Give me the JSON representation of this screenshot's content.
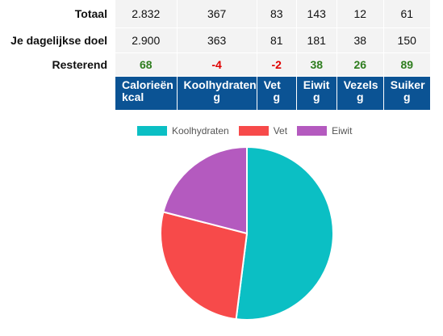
{
  "table": {
    "rows": [
      {
        "label": "Totaal",
        "values": [
          "2.832",
          "367",
          "83",
          "143",
          "12",
          "61"
        ],
        "status": [
          "",
          "",
          "",
          "",
          "",
          ""
        ]
      },
      {
        "label": "Je dagelijkse doel",
        "values": [
          "2.900",
          "363",
          "81",
          "181",
          "38",
          "150"
        ],
        "status": [
          "",
          "",
          "",
          "",
          "",
          ""
        ]
      },
      {
        "label": "Resterend",
        "values": [
          "68",
          "-4",
          "-2",
          "38",
          "26",
          "89"
        ],
        "status": [
          "pos",
          "neg",
          "neg",
          "pos",
          "pos",
          "pos"
        ]
      }
    ],
    "columns": [
      {
        "name": "Calorieën",
        "unit": "kcal"
      },
      {
        "name": "Koolhydraten",
        "unit": "g"
      },
      {
        "name": "Vet",
        "unit": "g"
      },
      {
        "name": "Eiwit",
        "unit": "g"
      },
      {
        "name": "Vezels",
        "unit": "g"
      },
      {
        "name": "Suiker",
        "unit": "g"
      }
    ]
  },
  "colors": {
    "header_bg": "#0b5394",
    "positive": "#2e7d1e",
    "negative": "#e00000"
  },
  "chart_data": {
    "type": "pie",
    "title": "",
    "legend_position": "top",
    "slices": [
      {
        "label": "Koolhydraten",
        "value": 52,
        "color": "#0bbfc4"
      },
      {
        "label": "Vet",
        "value": 27,
        "color": "#f74a4a"
      },
      {
        "label": "Eiwit",
        "value": 21,
        "color": "#b45abf"
      }
    ]
  }
}
